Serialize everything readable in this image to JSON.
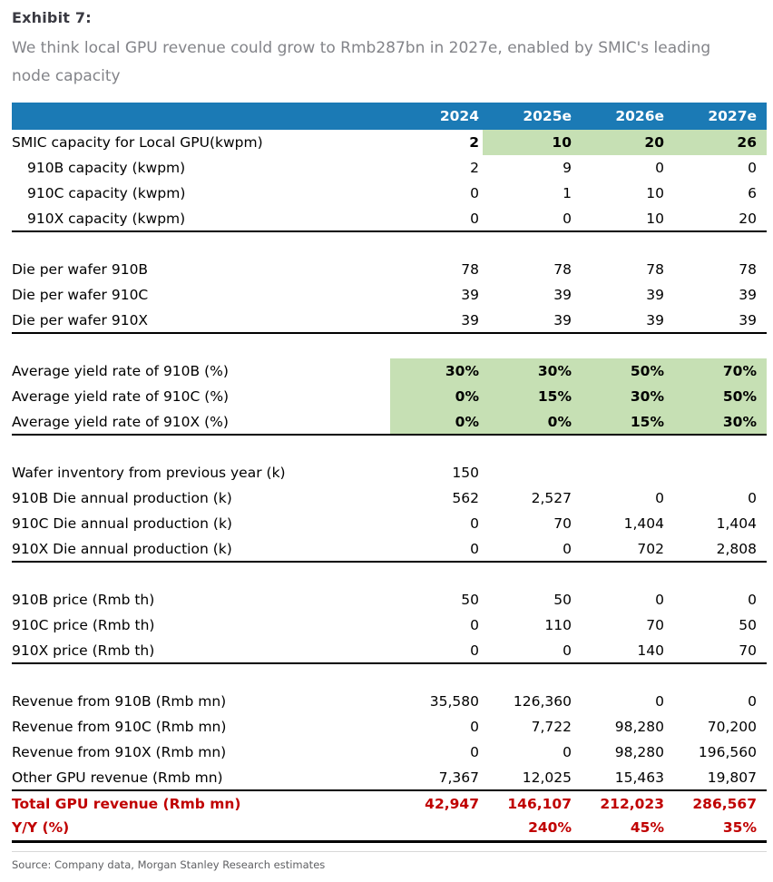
{
  "exhibit": {
    "label": "Exhibit 7:",
    "subtitle": "We think local GPU revenue could grow to Rmb287bn in 2027e, enabled by SMIC's leading node capacity"
  },
  "colors": {
    "header_bg": "#1b7ab5",
    "highlight_green": "#c6e0b4",
    "accent_red": "#c00000",
    "title_color": "#3a3a42",
    "subtitle_color": "#838489"
  },
  "table": {
    "columns": [
      "2024",
      "2025e",
      "2026e",
      "2027e"
    ],
    "rows": [
      {
        "label": "SMIC capacity for Local GPU(kwpm)",
        "values": [
          "2",
          "10",
          "20",
          "26"
        ],
        "bold": true,
        "boldValues": true,
        "green": [
          1,
          2,
          3
        ]
      },
      {
        "label": "910B capacity (kwpm)",
        "values": [
          "2",
          "9",
          "0",
          "0"
        ],
        "indent": true
      },
      {
        "label": "910C capacity (kwpm)",
        "values": [
          "0",
          "1",
          "10",
          "6"
        ],
        "indent": true
      },
      {
        "label": "910X capacity (kwpm)",
        "values": [
          "0",
          "0",
          "10",
          "20"
        ],
        "indent": true,
        "end": "sect-end"
      },
      {
        "spacer": true
      },
      {
        "label": "Die per wafer 910B",
        "values": [
          "78",
          "78",
          "78",
          "78"
        ]
      },
      {
        "label": "Die per wafer 910C",
        "values": [
          "39",
          "39",
          "39",
          "39"
        ]
      },
      {
        "label": "Die per wafer 910X",
        "values": [
          "39",
          "39",
          "39",
          "39"
        ],
        "end": "sect-end"
      },
      {
        "spacer": true
      },
      {
        "label": "Average yield rate of 910B (%)",
        "values": [
          "30%",
          "30%",
          "50%",
          "70%"
        ],
        "boldValues": true,
        "green": [
          0,
          1,
          2,
          3
        ]
      },
      {
        "label": "Average yield rate of 910C (%)",
        "values": [
          "0%",
          "15%",
          "30%",
          "50%"
        ],
        "boldValues": true,
        "green": [
          0,
          1,
          2,
          3
        ]
      },
      {
        "label": "Average yield rate of 910X (%)",
        "values": [
          "0%",
          "0%",
          "15%",
          "30%"
        ],
        "boldValues": true,
        "green": [
          0,
          1,
          2,
          3
        ],
        "end": "sect-end"
      },
      {
        "spacer": true
      },
      {
        "label": "Wafer inventory from previous year (k)",
        "values": [
          "150",
          "",
          "",
          ""
        ]
      },
      {
        "label": "910B Die annual production (k)",
        "values": [
          "562",
          "2,527",
          "0",
          "0"
        ]
      },
      {
        "label": "910C Die annual production (k)",
        "values": [
          "0",
          "70",
          "1,404",
          "1,404"
        ]
      },
      {
        "label": "910X Die annual production (k)",
        "values": [
          "0",
          "0",
          "702",
          "2,808"
        ],
        "end": "sect-end"
      },
      {
        "spacer": true
      },
      {
        "label": "910B price (Rmb th)",
        "values": [
          "50",
          "50",
          "0",
          "0"
        ]
      },
      {
        "label": "910C price (Rmb th)",
        "values": [
          "0",
          "110",
          "70",
          "50"
        ]
      },
      {
        "label": "910X price (Rmb th)",
        "values": [
          "0",
          "0",
          "140",
          "70"
        ],
        "end": "sect-end"
      },
      {
        "spacer": true
      },
      {
        "label": "Revenue from 910B (Rmb mn)",
        "values": [
          "35,580",
          "126,360",
          "0",
          "0"
        ]
      },
      {
        "label": "Revenue from 910C (Rmb mn)",
        "values": [
          "0",
          "7,722",
          "98,280",
          "70,200"
        ]
      },
      {
        "label": "Revenue from 910X (Rmb mn)",
        "values": [
          "0",
          "0",
          "98,280",
          "196,560"
        ]
      },
      {
        "label": "Other GPU revenue (Rmb mn)",
        "values": [
          "7,367",
          "12,025",
          "15,463",
          "19,807"
        ],
        "end": "sect-end"
      },
      {
        "label": "Total GPU revenue (Rmb mn)",
        "values": [
          "42,947",
          "146,107",
          "212,023",
          "286,567"
        ],
        "red": true,
        "bold": true,
        "boldValues": true
      },
      {
        "label": "Y/Y (%)",
        "values": [
          "",
          "240%",
          "45%",
          "35%"
        ],
        "red": true,
        "bold": true,
        "boldValues": true,
        "end": "table-end"
      }
    ]
  },
  "source": "Source: Company data, Morgan Stanley Research estimates"
}
